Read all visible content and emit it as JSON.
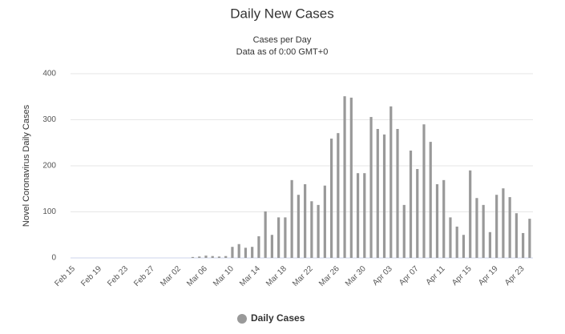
{
  "chart_data": {
    "type": "bar",
    "title": "Daily New Cases",
    "subtitle": [
      "Cases per Day",
      "Data as of 0:00 GMT+0"
    ],
    "y_label": "Novel Coronavirus Daily Cases",
    "categories": [
      "Feb 15",
      null,
      null,
      null,
      "Feb 19",
      null,
      null,
      null,
      "Feb 23",
      null,
      null,
      null,
      "Feb 27",
      null,
      null,
      null,
      "Mar 02",
      null,
      null,
      null,
      "Mar 06",
      null,
      null,
      null,
      "Mar 10",
      null,
      null,
      null,
      "Mar 14",
      null,
      null,
      null,
      "Mar 18",
      null,
      null,
      null,
      "Mar 22",
      null,
      null,
      null,
      "Mar 26",
      null,
      null,
      null,
      "Mar 30",
      null,
      null,
      null,
      "Apr 03",
      null,
      null,
      null,
      "Apr 07",
      null,
      null,
      null,
      "Apr 11",
      null,
      null,
      null,
      "Apr 15",
      null,
      null,
      null,
      "Apr 19",
      null,
      null,
      null,
      "Apr 23",
      null
    ],
    "series": [
      {
        "name": "Daily Cases",
        "color": "#999999",
        "values": [
          0,
          0,
          0,
          0,
          0,
          0,
          0,
          0,
          0,
          0,
          0,
          0,
          0,
          0,
          0,
          0,
          0,
          0,
          2,
          3,
          5,
          4,
          3,
          4,
          24,
          30,
          22,
          24,
          47,
          101,
          50,
          88,
          88,
          169,
          137,
          160,
          123,
          115,
          157,
          259,
          271,
          351,
          348,
          184,
          184,
          306,
          280,
          268,
          329,
          280,
          115,
          233,
          193,
          290,
          252,
          160,
          169,
          88,
          68,
          50,
          190,
          130,
          115,
          56,
          137,
          151,
          132,
          97,
          54,
          85
        ]
      }
    ],
    "ylim": [
      0,
      400
    ],
    "yticks": [
      0,
      100,
      200,
      300,
      400
    ],
    "grid": true
  }
}
